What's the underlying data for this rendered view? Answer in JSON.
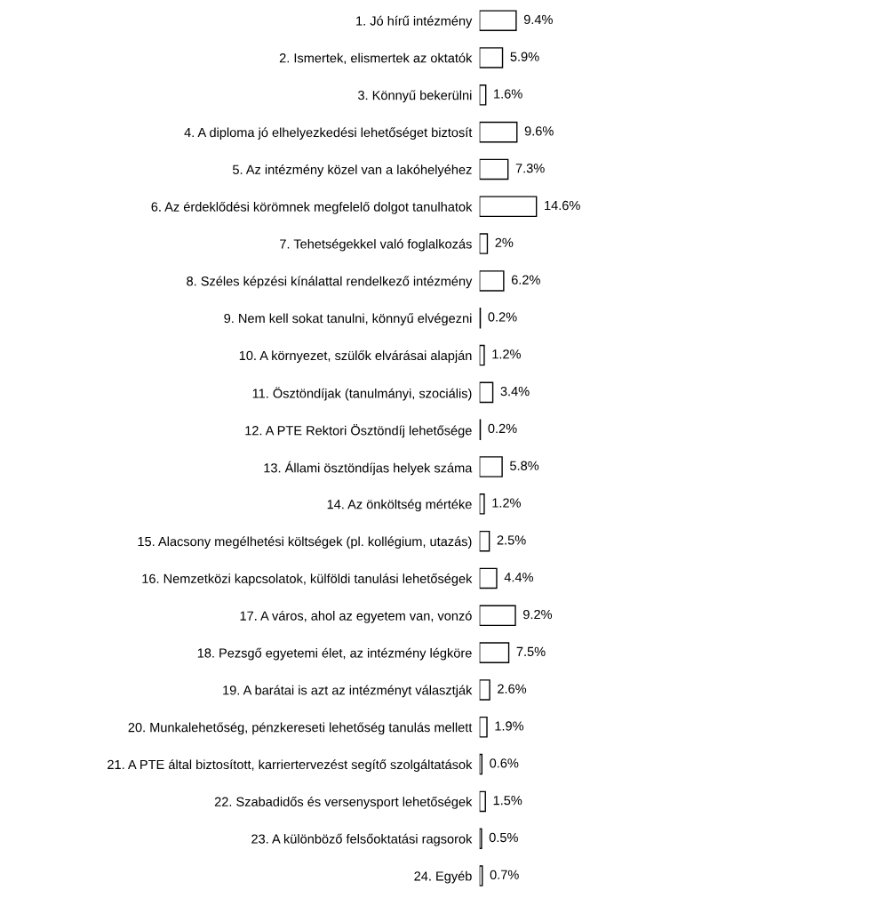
{
  "chart_data": {
    "type": "bar",
    "orientation": "horizontal",
    "data_labels": true,
    "color": "#ffffff",
    "categories": [
      "1. Jó hírű intézmény",
      "2. Ismertek, elismertek az oktatók",
      "3. Könnyű bekerülni",
      "4. A diploma jó elhelyezkedési lehetőséget biztosít",
      "5. Az intézmény közel van a lakóhelyéhez",
      "6. Az érdeklődési körömnek megfelelő dolgot tanulhatok",
      "7. Tehetségekkel való foglalkozás",
      "8. Széles képzési kínálattal rendelkező intézmény",
      "9. Nem kell sokat tanulni, könnyű elvégezni",
      "10. A környezet, szülők elvárásai alapján",
      "11. Ösztöndíjak (tanulmányi, szociális)",
      "12. A PTE Rektori Ösztöndíj lehetősége",
      "13. Állami ösztöndíjas helyek száma",
      "14. Az önköltség mértéke",
      "15. Alacsony megélhetési költségek (pl. kollégium, utazás)",
      "16. Nemzetközi kapcsolatok, külföldi tanulási lehetőségek",
      "17. A város, ahol az egyetem van, vonzó",
      "18. Pezsgő egyetemi élet, az intézmény légköre",
      "19. A barátai is azt az intézményt választják",
      "20. Munkalehetőség, pénzkereseti lehetőség tanulás mellett",
      "21. A PTE által biztosított, karriertervezést segítő szolgáltatások",
      "22. Szabadidős és versenysport lehetőségek",
      "23. A különböző felsőoktatási ragsorok",
      "24. Egyéb"
    ],
    "values": [
      9.4,
      5.9,
      1.6,
      9.6,
      7.3,
      14.6,
      2,
      6.2,
      0.2,
      1.2,
      3.4,
      0.2,
      5.8,
      1.2,
      2.5,
      4.4,
      9.2,
      7.5,
      2.6,
      1.9,
      0.6,
      1.5,
      0.5,
      0.7
    ],
    "value_labels": [
      "9.4%",
      "5.9%",
      "1.6%",
      "9.6%",
      "7.3%",
      "14.6%",
      "2%",
      "6.2%",
      "0.2%",
      "1.2%",
      "3.4%",
      "0.2%",
      "5.8%",
      "1.2%",
      "2.5%",
      "4.4%",
      "9.2%",
      "7.5%",
      "2.6%",
      "1.9%",
      "0.6%",
      "1.5%",
      "0.5%",
      "0.7%"
    ]
  }
}
